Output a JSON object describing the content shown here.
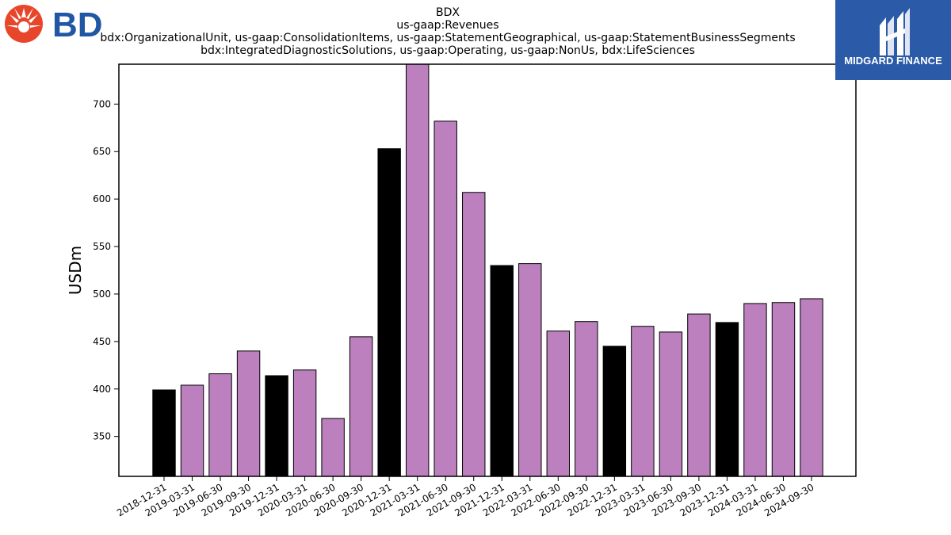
{
  "chart_data": {
    "type": "bar",
    "title_lines": [
      "BDX",
      "us-gaap:Revenues",
      "bdx:OrganizationalUnit, us-gaap:ConsolidationItems, us-gaap:StatementGeographical, us-gaap:StatementBusinessSegments",
      "bdx:IntegratedDiagnosticSolutions, us-gaap:Operating, us-gaap:NonUs, bdx:LifeSciences"
    ],
    "ylabel": "USDm",
    "xlabel": "",
    "ylim": [
      308,
      742
    ],
    "yticks": [
      350,
      400,
      450,
      500,
      550,
      600,
      650,
      700
    ],
    "categories": [
      "2018-12-31",
      "2019-03-31",
      "2019-06-30",
      "2019-09-30",
      "2019-12-31",
      "2020-03-31",
      "2020-06-30",
      "2020-09-30",
      "2020-12-31",
      "2021-03-31",
      "2021-06-30",
      "2021-09-30",
      "2021-12-31",
      "2022-03-31",
      "2022-06-30",
      "2022-09-30",
      "2022-12-31",
      "2023-03-31",
      "2023-06-30",
      "2023-09-30",
      "2023-12-31",
      "2024-03-31",
      "2024-06-30",
      "2024-09-30"
    ],
    "values": [
      399,
      404,
      416,
      440,
      414,
      420,
      369,
      455,
      653,
      744,
      682,
      607,
      530,
      532,
      461,
      471,
      445,
      466,
      460,
      479,
      470,
      490,
      491,
      495
    ],
    "bar_colors": [
      "#000000",
      "#bb80bd",
      "#bb80bd",
      "#bb80bd",
      "#000000",
      "#bb80bd",
      "#bb80bd",
      "#bb80bd",
      "#000000",
      "#bb80bd",
      "#bb80bd",
      "#bb80bd",
      "#000000",
      "#bb80bd",
      "#bb80bd",
      "#bb80bd",
      "#000000",
      "#bb80bd",
      "#bb80bd",
      "#bb80bd",
      "#000000",
      "#bb80bd",
      "#bb80bd",
      "#bb80bd"
    ],
    "grid": false,
    "legend": "none"
  },
  "logos": {
    "left": {
      "text": "BD",
      "color": "#1f57a4",
      "accent": "#e8462a"
    },
    "right": {
      "text": "MIDGARD FINANCE",
      "background": "#2a5aa8"
    }
  }
}
